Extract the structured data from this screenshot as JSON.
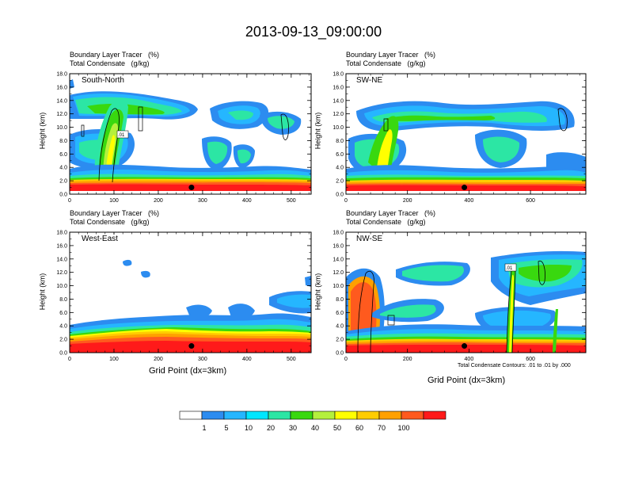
{
  "title": "2013-09-13_09:00:00",
  "chart_data": [
    {
      "type": "heatmap",
      "label": "South-North",
      "header_line1": "Boundary Layer Tracer   (%)",
      "header_line2": "Total Condensate   (g/kg)",
      "ylabel": "Height (km)",
      "xlabel": "",
      "xlim": [
        0,
        545
      ],
      "xticks": [
        0,
        100,
        200,
        300,
        400,
        500
      ],
      "ylim": [
        0,
        18
      ],
      "yticks": [
        "0.0",
        "2.0",
        "4.0",
        "6.0",
        "8.0",
        "10.0",
        "12.0",
        "14.0",
        "16.0",
        "18.0"
      ],
      "marker_x": 275,
      "contour_label": ".01"
    },
    {
      "type": "heatmap",
      "label": "SW-NE",
      "header_line1": "Boundary Layer Tracer   (%)",
      "header_line2": "Total Condensate   (g/kg)",
      "ylabel": "Height (km)",
      "xlabel": "",
      "xlim": [
        0,
        780
      ],
      "xticks": [
        0,
        200,
        400,
        600
      ],
      "ylim": [
        0,
        18
      ],
      "yticks": [
        "0.0",
        "2.0",
        "4.0",
        "6.0",
        "8.0",
        "10.0",
        "12.0",
        "14.0",
        "16.0",
        "18.0"
      ],
      "marker_x": 385,
      "contour_label": ""
    },
    {
      "type": "heatmap",
      "label": "West-East",
      "header_line1": "Boundary Layer Tracer   (%)",
      "header_line2": "Total Condensate   (g/kg)",
      "ylabel": "Height (km)",
      "xlabel": "Grid Point (dx=3km)",
      "xlim": [
        0,
        545
      ],
      "xticks": [
        0,
        100,
        200,
        300,
        400,
        500
      ],
      "ylim": [
        0,
        18
      ],
      "yticks": [
        "0.0",
        "2.0",
        "4.0",
        "6.0",
        "8.0",
        "10.0",
        "12.0",
        "14.0",
        "16.0",
        "18.0"
      ],
      "marker_x": 275,
      "contour_label": ""
    },
    {
      "type": "heatmap",
      "label": "NW-SE",
      "header_line1": "Boundary Layer Tracer   (%)",
      "header_line2": "Total Condensate   (g/kg)",
      "ylabel": "Height (km)",
      "xlabel": "Grid Point (dx=3km)",
      "xlim": [
        0,
        780
      ],
      "xticks": [
        0,
        200,
        400,
        600
      ],
      "ylim": [
        0,
        18
      ],
      "yticks": [
        "0.0",
        "2.0",
        "4.0",
        "6.0",
        "8.0",
        "10.0",
        "12.0",
        "14.0",
        "16.0",
        "18.0"
      ],
      "marker_x": 385,
      "contour_label": ".01"
    }
  ],
  "contour_note": "Total Condensate Contours: .01 to .01 by .000",
  "colorbar": {
    "colors": [
      "#ffffff",
      "#2c8cf0",
      "#25b6ff",
      "#00e6ff",
      "#2ce6a4",
      "#39d80f",
      "#b4f03c",
      "#ffff00",
      "#ffcc00",
      "#ffa000",
      "#ff5a1e",
      "#ff1a1a"
    ],
    "labels": [
      "1",
      "5",
      "10",
      "20",
      "30",
      "40",
      "50",
      "60",
      "70",
      "100"
    ]
  }
}
